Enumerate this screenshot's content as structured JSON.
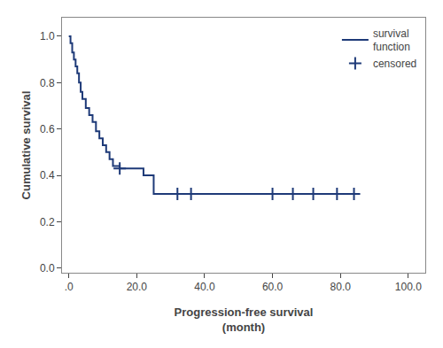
{
  "chart_data": {
    "type": "line",
    "xlabel": "Progression-free survival\n(month)",
    "ylabel": "Cumulative survival",
    "xlim": [
      -2,
      105
    ],
    "ylim": [
      -0.02,
      1.08
    ],
    "xticks": [
      {
        "value": 0,
        "label": ".0"
      },
      {
        "value": 20,
        "label": "20.0"
      },
      {
        "value": 40,
        "label": "40.0"
      },
      {
        "value": 60,
        "label": "60.0"
      },
      {
        "value": 80,
        "label": "80.0"
      },
      {
        "value": 100,
        "label": "100.0"
      }
    ],
    "yticks": [
      {
        "value": 0.0,
        "label": "0.0"
      },
      0.2,
      0.4,
      0.6,
      0.8,
      {
        "value": 1.0,
        "label": "1.0"
      }
    ],
    "grid": false,
    "legend": "upper right",
    "series": [
      {
        "name": "survival\nfunction",
        "type": "step",
        "color": "#1E3A78",
        "x": [
          0,
          0.5,
          1,
          1.5,
          2,
          2.5,
          3,
          3.5,
          4,
          5,
          6,
          7,
          8,
          9,
          10,
          11,
          12,
          13,
          15,
          18,
          22,
          25,
          27,
          30,
          84,
          85
        ],
        "values": [
          1.0,
          0.97,
          0.93,
          0.9,
          0.87,
          0.84,
          0.8,
          0.76,
          0.73,
          0.69,
          0.66,
          0.63,
          0.59,
          0.56,
          0.53,
          0.5,
          0.47,
          0.44,
          0.43,
          0.43,
          0.4,
          0.32,
          0.32,
          0.32,
          0.32,
          0.32
        ]
      },
      {
        "name": "censored",
        "type": "scatter",
        "marker": "plus",
        "color": "#1E3A78",
        "x": [
          15,
          32,
          36,
          60,
          66,
          72,
          79,
          84
        ],
        "values": [
          0.43,
          0.32,
          0.32,
          0.32,
          0.32,
          0.32,
          0.32,
          0.32
        ]
      }
    ]
  }
}
